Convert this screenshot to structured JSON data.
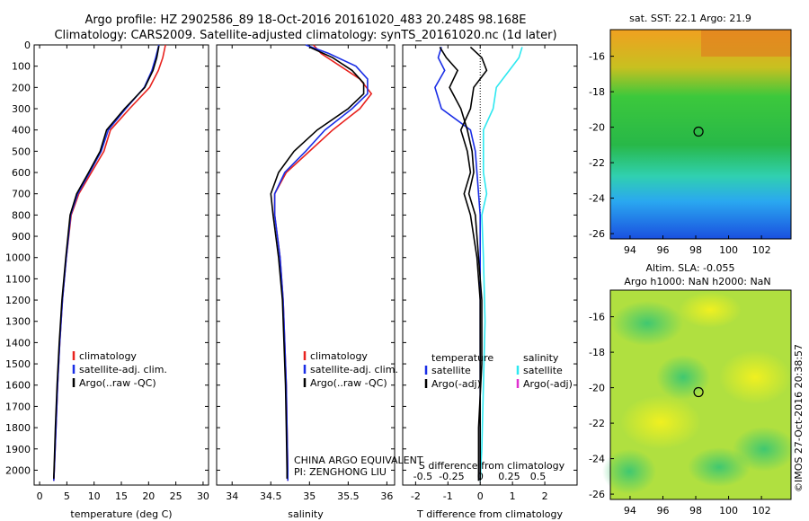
{
  "header": {
    "line1": "Argo profile: HZ 2902586_89 18-Oct-2016 20161020_483 20.248S 98.168E",
    "line2": "Climatology: CARS2009. Satellite-adjusted climatology: synTS_20161020.nc (1d later)"
  },
  "side_text": "©IMOS 27-Oct-2016 20:38:57",
  "colors": {
    "climatology": "#e8231f",
    "satellite": "#1a2ee6",
    "argo": "#000000",
    "cyan": "#2ee8f0",
    "magenta": "#e030d0"
  },
  "chart_data": [
    {
      "type": "line",
      "xlabel": "temperature (deg C)",
      "ylabel": "",
      "xlim": [
        -1,
        31
      ],
      "ylim": [
        2070,
        0
      ],
      "x_ticks": [
        "0",
        "5",
        "10",
        "15",
        "20",
        "25",
        "30"
      ],
      "y_ticks": [
        "0",
        "100",
        "200",
        "300",
        "400",
        "500",
        "600",
        "700",
        "800",
        "900",
        "1000",
        "1100",
        "1200",
        "1300",
        "1400",
        "1500",
        "1600",
        "1700",
        "1800",
        "1900",
        "2000"
      ],
      "legend": [
        "climatology",
        "satellite-adj. clim.",
        "Argo(..raw -QC)"
      ],
      "series": [
        {
          "name": "climatology",
          "color": "#e8231f",
          "points": [
            [
              23.1,
              0
            ],
            [
              22.6,
              60
            ],
            [
              21.8,
              120
            ],
            [
              20.2,
              200
            ],
            [
              16.5,
              300
            ],
            [
              13,
              400
            ],
            [
              11.8,
              500
            ],
            [
              9.5,
              600
            ],
            [
              7.2,
              700
            ],
            [
              5.8,
              800
            ],
            [
              4.9,
              1000
            ],
            [
              4.2,
              1200
            ],
            [
              3.7,
              1400
            ],
            [
              3.3,
              1600
            ],
            [
              3,
              1800
            ],
            [
              2.7,
              2000
            ],
            [
              2.6,
              2050
            ]
          ]
        },
        {
          "name": "satellite-adj. clim.",
          "color": "#1a2ee6",
          "points": [
            [
              21.9,
              0
            ],
            [
              21.3,
              60
            ],
            [
              20.6,
              120
            ],
            [
              19.2,
              200
            ],
            [
              15.8,
              300
            ],
            [
              12.6,
              400
            ],
            [
              11.3,
              500
            ],
            [
              9.2,
              600
            ],
            [
              7,
              700
            ],
            [
              5.7,
              800
            ],
            [
              4.9,
              1000
            ],
            [
              4.2,
              1200
            ],
            [
              3.7,
              1400
            ],
            [
              3.3,
              1600
            ],
            [
              3,
              1800
            ],
            [
              2.7,
              2000
            ],
            [
              2.6,
              2050
            ]
          ]
        },
        {
          "name": "Argo(..raw -QC)",
          "color": "#000000",
          "points": [
            [
              21.9,
              5
            ],
            [
              21.5,
              60
            ],
            [
              20.8,
              120
            ],
            [
              19.3,
              200
            ],
            [
              15.6,
              300
            ],
            [
              12.3,
              400
            ],
            [
              11.1,
              500
            ],
            [
              9,
              600
            ],
            [
              6.8,
              700
            ],
            [
              5.6,
              800
            ],
            [
              4.8,
              1000
            ],
            [
              4.1,
              1200
            ],
            [
              3.6,
              1400
            ],
            [
              3.2,
              1600
            ],
            [
              2.9,
              1800
            ],
            [
              2.65,
              2000
            ],
            [
              2.6,
              2040
            ]
          ]
        }
      ]
    },
    {
      "type": "line",
      "xlabel": "salinity",
      "xlim": [
        33.8,
        36.1
      ],
      "ylim": [
        2070,
        0
      ],
      "x_ticks": [
        "34",
        "34.5",
        "35",
        "35.5",
        "36"
      ],
      "legend": [
        "climatology",
        "satellite-adj. clim.",
        "Argo(..raw -QC)"
      ],
      "annotation": [
        "CHINA ARGO EQUIVALENT",
        "PI: ZENGHONG LIU"
      ],
      "series": [
        {
          "name": "climatology",
          "color": "#e8231f",
          "points": [
            [
              35.05,
              0
            ],
            [
              35.15,
              40
            ],
            [
              35.4,
              100
            ],
            [
              35.65,
              160
            ],
            [
              35.8,
              230
            ],
            [
              35.65,
              300
            ],
            [
              35.3,
              400
            ],
            [
              35,
              500
            ],
            [
              34.7,
              600
            ],
            [
              34.55,
              700
            ],
            [
              34.55,
              800
            ],
            [
              34.62,
              1000
            ],
            [
              34.66,
              1200
            ],
            [
              34.68,
              1400
            ],
            [
              34.7,
              1600
            ],
            [
              34.71,
              1800
            ],
            [
              34.72,
              2000
            ],
            [
              34.72,
              2050
            ]
          ]
        },
        {
          "name": "satellite-adj. clim.",
          "color": "#1a2ee6",
          "points": [
            [
              34.95,
              0
            ],
            [
              35.25,
              40
            ],
            [
              35.6,
              100
            ],
            [
              35.75,
              160
            ],
            [
              35.75,
              230
            ],
            [
              35.55,
              300
            ],
            [
              35.2,
              400
            ],
            [
              34.95,
              500
            ],
            [
              34.68,
              600
            ],
            [
              34.55,
              700
            ],
            [
              34.55,
              800
            ],
            [
              34.62,
              1000
            ],
            [
              34.66,
              1200
            ],
            [
              34.68,
              1400
            ],
            [
              34.7,
              1600
            ],
            [
              34.71,
              1800
            ],
            [
              34.72,
              2000
            ],
            [
              34.72,
              2050
            ]
          ]
        },
        {
          "name": "Argo(..raw -QC)",
          "color": "#000000",
          "points": [
            [
              35,
              10
            ],
            [
              35.3,
              60
            ],
            [
              35.55,
              120
            ],
            [
              35.7,
              180
            ],
            [
              35.7,
              230
            ],
            [
              35.5,
              300
            ],
            [
              35.1,
              400
            ],
            [
              34.8,
              500
            ],
            [
              34.6,
              600
            ],
            [
              34.5,
              700
            ],
            [
              34.53,
              800
            ],
            [
              34.6,
              1000
            ],
            [
              34.65,
              1200
            ],
            [
              34.67,
              1400
            ],
            [
              34.69,
              1600
            ],
            [
              34.7,
              1800
            ],
            [
              34.71,
              2000
            ],
            [
              34.71,
              2040
            ]
          ]
        }
      ]
    },
    {
      "type": "line",
      "xlabel": "T difference from climatology",
      "x2label": "S difference from climatology",
      "xlim": [
        -2.4,
        3
      ],
      "ylim": [
        2070,
        0
      ],
      "x_ticks": [
        "-2",
        "-1",
        "0",
        "1",
        "2"
      ],
      "x2_ticks": [
        "-0.5",
        "-0.25",
        "0",
        "0.25",
        "0.5"
      ],
      "legend_temperature": {
        "title": "temperature",
        "items": [
          "satellite",
          "Argo(-adj)"
        ]
      },
      "legend_salinity": {
        "title": "salinity",
        "items": [
          "satellite",
          "Argo(-adj)"
        ]
      },
      "series": [
        {
          "name": "satellite",
          "color": "#1a2ee6",
          "points": [
            [
              -1.2,
              10
            ],
            [
              -1.3,
              60
            ],
            [
              -1.1,
              120
            ],
            [
              -1.4,
              200
            ],
            [
              -1.2,
              300
            ],
            [
              -0.3,
              400
            ],
            [
              -0.15,
              500
            ],
            [
              -0.1,
              600
            ],
            [
              -0.05,
              700
            ],
            [
              0,
              800
            ],
            [
              0,
              1000
            ],
            [
              0,
              1200
            ],
            [
              0,
              1500
            ],
            [
              0,
              1800
            ],
            [
              0,
              2050
            ]
          ]
        },
        {
          "name": "Argo(-adj)",
          "color": "#000000",
          "points": [
            [
              -1.25,
              10
            ],
            [
              -1.05,
              60
            ],
            [
              -0.7,
              120
            ],
            [
              -0.95,
              200
            ],
            [
              -0.6,
              300
            ],
            [
              -0.4,
              400
            ],
            [
              -0.25,
              500
            ],
            [
              -0.2,
              600
            ],
            [
              -0.35,
              700
            ],
            [
              -0.15,
              800
            ],
            [
              -0.05,
              1000
            ],
            [
              0.05,
              1200
            ],
            [
              0.05,
              1500
            ],
            [
              -0.05,
              1800
            ],
            [
              -0.05,
              2050
            ]
          ]
        },
        {
          "name": "salinity satellite",
          "color": "#2ee8f0",
          "points": [
            [
              1.3,
              10
            ],
            [
              1.2,
              60
            ],
            [
              0.9,
              120
            ],
            [
              0.5,
              200
            ],
            [
              0.4,
              300
            ],
            [
              0.1,
              400
            ],
            [
              0.1,
              500
            ],
            [
              0.1,
              600
            ],
            [
              0.2,
              700
            ],
            [
              0.05,
              800
            ],
            [
              0.1,
              1000
            ],
            [
              0.15,
              1300
            ],
            [
              0.1,
              1600
            ],
            [
              0.05,
              1900
            ],
            [
              0,
              2050
            ]
          ]
        },
        {
          "name": "salinity Argo(-adj)",
          "color": "#000000",
          "points": [
            [
              -0.3,
              10
            ],
            [
              0.05,
              60
            ],
            [
              0.2,
              120
            ],
            [
              -0.2,
              200
            ],
            [
              -0.3,
              300
            ],
            [
              -0.6,
              400
            ],
            [
              -0.4,
              500
            ],
            [
              -0.3,
              600
            ],
            [
              -0.5,
              700
            ],
            [
              -0.3,
              800
            ],
            [
              -0.1,
              1000
            ],
            [
              0,
              1200
            ],
            [
              0,
              1600
            ],
            [
              0,
              2050
            ]
          ]
        }
      ]
    },
    {
      "type": "heatmap",
      "title": "sat. SST: 22.1  Argo: 21.9",
      "x_ticks": [
        "94",
        "96",
        "98",
        "100",
        "102"
      ],
      "y_ticks": [
        "-16",
        "-18",
        "-20",
        "-22",
        "-24",
        "-26"
      ],
      "xlim": [
        92.8,
        103.8
      ],
      "ylim": [
        -26.3,
        -14.5
      ],
      "marker": [
        98.168,
        -20.248
      ]
    },
    {
      "type": "heatmap",
      "title": "Altim. SLA: -0.055",
      "subtitle": "Argo h1000: NaN h2000: NaN",
      "x_ticks": [
        "94",
        "96",
        "98",
        "100",
        "102"
      ],
      "y_ticks": [
        "-16",
        "-18",
        "-20",
        "-22",
        "-24",
        "-26"
      ],
      "xlim": [
        92.8,
        103.8
      ],
      "ylim": [
        -26.3,
        -14.5
      ],
      "marker": [
        98.168,
        -20.248
      ]
    }
  ]
}
